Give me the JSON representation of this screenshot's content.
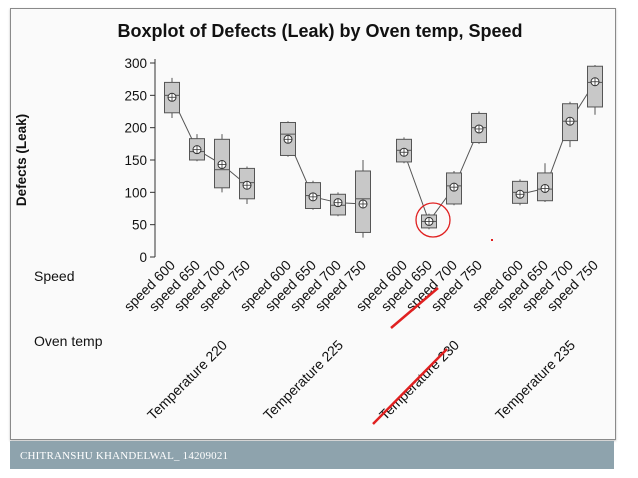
{
  "footer": {
    "text": "CHITRANSHU KHANDELWAL_ 14209021"
  },
  "chart_data": {
    "type": "boxplot",
    "title": "Boxplot of Defects (Leak) by Oven temp, Speed",
    "ylabel": "Defects (Leak)",
    "ylim": [
      0,
      300
    ],
    "yticks": [
      0,
      50,
      100,
      150,
      200,
      250,
      300
    ],
    "row_labels": [
      "Speed",
      "Oven temp"
    ],
    "groups": [
      "Temperature 220",
      "Temperature 225",
      "Temperature 230",
      "Temperature 235"
    ],
    "categories": [
      "speed 600",
      "speed 650",
      "speed 700",
      "speed 750",
      "speed 600",
      "speed 650",
      "speed 700",
      "speed 750",
      "speed 600",
      "speed 650",
      "speed 700",
      "speed 750",
      "speed 600",
      "speed 650",
      "speed 700",
      "speed 750"
    ],
    "boxes": [
      {
        "min": 215,
        "q1": 223,
        "median": 250,
        "q3": 270,
        "max": 277,
        "mean": 247
      },
      {
        "min": 148,
        "q1": 150,
        "median": 163,
        "q3": 183,
        "max": 190,
        "mean": 166
      },
      {
        "min": 100,
        "q1": 107,
        "median": 135,
        "q3": 182,
        "max": 190,
        "mean": 143
      },
      {
        "min": 82,
        "q1": 90,
        "median": 115,
        "q3": 137,
        "max": 140,
        "mean": 111
      },
      {
        "min": 155,
        "q1": 157,
        "median": 190,
        "q3": 208,
        "max": 210,
        "mean": 182
      },
      {
        "min": 73,
        "q1": 75,
        "median": 95,
        "q3": 115,
        "max": 118,
        "mean": 93
      },
      {
        "min": 63,
        "q1": 65,
        "median": 80,
        "q3": 97,
        "max": 100,
        "mean": 84
      },
      {
        "min": 30,
        "q1": 38,
        "median": 90,
        "q3": 133,
        "max": 150,
        "mean": 82
      },
      {
        "min": 145,
        "q1": 147,
        "median": 165,
        "q3": 182,
        "max": 185,
        "mean": 162
      },
      {
        "min": 43,
        "q1": 45,
        "median": 55,
        "q3": 65,
        "max": 67,
        "mean": 55
      },
      {
        "min": 80,
        "q1": 82,
        "median": 110,
        "q3": 130,
        "max": 133,
        "mean": 108
      },
      {
        "min": 175,
        "q1": 177,
        "median": 200,
        "q3": 222,
        "max": 225,
        "mean": 198
      },
      {
        "min": 80,
        "q1": 83,
        "median": 100,
        "q3": 117,
        "max": 120,
        "mean": 97
      },
      {
        "min": 85,
        "q1": 87,
        "median": 105,
        "q3": 130,
        "max": 145,
        "mean": 106
      },
      {
        "min": 170,
        "q1": 180,
        "median": 210,
        "q3": 237,
        "max": 240,
        "mean": 210
      },
      {
        "min": 220,
        "q1": 232,
        "median": 270,
        "q3": 295,
        "max": 297,
        "mean": 271
      }
    ],
    "colors": {
      "box_fill": "#c8c8c8",
      "box_stroke": "#555555",
      "axis": "#333333",
      "annotation": "#e02020"
    },
    "grid": false,
    "legend": "none"
  }
}
